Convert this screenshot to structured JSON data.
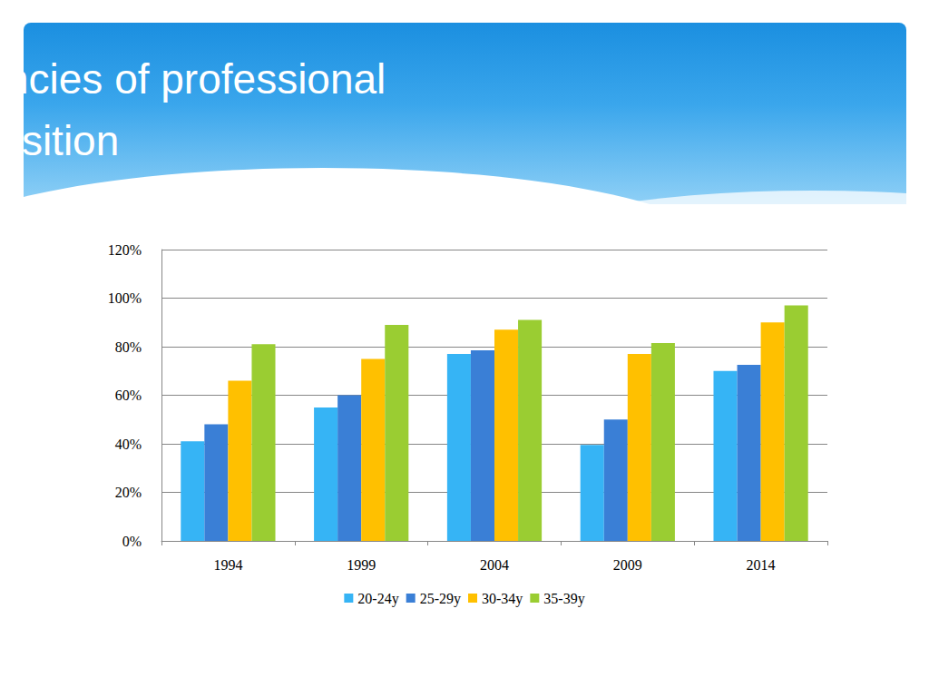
{
  "chart_data": {
    "type": "bar",
    "title": "Relative expectancies of professional position",
    "categories": [
      "1994",
      "1999",
      "2004",
      "2009",
      "2014"
    ],
    "series": [
      {
        "name": "20-24y",
        "color": "#36b4f5",
        "values": [
          41,
          55,
          77,
          39.5,
          70
        ]
      },
      {
        "name": "25-29y",
        "color": "#3a7fd6",
        "values": [
          48,
          60,
          78.5,
          50,
          72.5
        ]
      },
      {
        "name": "30-34y",
        "color": "#ffc000",
        "values": [
          66,
          75,
          87,
          77,
          90
        ]
      },
      {
        "name": "35-39y",
        "color": "#9acd32",
        "values": [
          81,
          89,
          91,
          81.5,
          97
        ]
      }
    ],
    "ylim": [
      0,
      120
    ],
    "yticks": [
      {
        "value": 0,
        "label": "0%"
      },
      {
        "value": 20,
        "label": "20%"
      },
      {
        "value": 40,
        "label": "40%"
      },
      {
        "value": 60,
        "label": "60%"
      },
      {
        "value": 80,
        "label": "80%"
      },
      {
        "value": 100,
        "label": "100%"
      },
      {
        "value": 120,
        "label": "120%"
      }
    ],
    "grid": true,
    "legend": "bottom"
  }
}
